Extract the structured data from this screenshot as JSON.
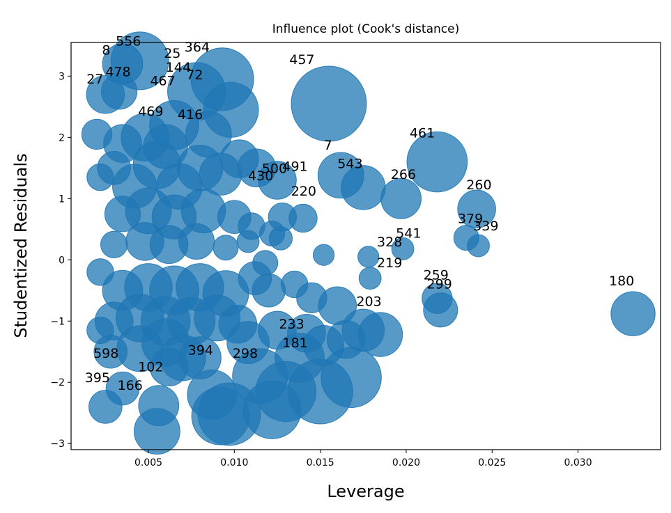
{
  "chart_data": {
    "type": "scatter",
    "title": "Influence plot (Cook's distance)",
    "xlabel": "Leverage",
    "ylabel": "Studentized Residuals",
    "xlim": [
      0.0005,
      0.0348
    ],
    "ylim": [
      -3.1,
      3.55
    ],
    "xticks": [
      0.005,
      0.01,
      0.015,
      0.02,
      0.025,
      0.03
    ],
    "xtick_labels": [
      "0.005",
      "0.010",
      "0.015",
      "0.020",
      "0.025",
      "0.030"
    ],
    "yticks": [
      -3,
      -2,
      -1,
      0,
      1,
      2,
      3
    ],
    "ytick_labels": [
      "−3",
      "−2",
      "−1",
      "0",
      "1",
      "2",
      "3"
    ],
    "grid": false,
    "color": "#1f77b4",
    "size_encodes": "Cook's distance",
    "points": [
      {
        "x": 0.0045,
        "y": 3.25,
        "cooks": 0.9
      },
      {
        "x": 0.0035,
        "y": 3.2,
        "cooks": 0.35
      },
      {
        "x": 0.0025,
        "y": 2.7,
        "cooks": 0.3
      },
      {
        "x": 0.0033,
        "y": 2.75,
        "cooks": 0.25
      },
      {
        "x": 0.0078,
        "y": 2.75,
        "cooks": 0.9
      },
      {
        "x": 0.0093,
        "y": 2.95,
        "cooks": 1.1
      },
      {
        "x": 0.0155,
        "y": 2.55,
        "cooks": 1.7
      },
      {
        "x": 0.0098,
        "y": 2.45,
        "cooks": 0.8
      },
      {
        "x": 0.0065,
        "y": 2.2,
        "cooks": 0.6
      },
      {
        "x": 0.002,
        "y": 2.05,
        "cooks": 0.15
      },
      {
        "x": 0.0218,
        "y": 1.6,
        "cooks": 1.0
      },
      {
        "x": 0.0162,
        "y": 1.38,
        "cooks": 0.5
      },
      {
        "x": 0.0175,
        "y": 1.18,
        "cooks": 0.45
      },
      {
        "x": 0.0197,
        "y": 1.0,
        "cooks": 0.35
      },
      {
        "x": 0.0241,
        "y": 0.83,
        "cooks": 0.3
      },
      {
        "x": 0.0235,
        "y": 0.36,
        "cooks": 0.08
      },
      {
        "x": 0.0242,
        "y": 0.23,
        "cooks": 0.05
      },
      {
        "x": 0.0332,
        "y": -0.88,
        "cooks": 0.45
      },
      {
        "x": 0.0218,
        "y": -0.63,
        "cooks": 0.15
      },
      {
        "x": 0.022,
        "y": -0.82,
        "cooks": 0.22
      },
      {
        "x": 0.0175,
        "y": -1.15,
        "cooks": 0.4
      },
      {
        "x": 0.0185,
        "y": -1.22,
        "cooks": 0.45
      },
      {
        "x": 0.0168,
        "y": -1.92,
        "cooks": 1.0
      },
      {
        "x": 0.015,
        "y": -2.15,
        "cooks": 1.2
      },
      {
        "x": 0.013,
        "y": -2.15,
        "cooks": 1.0
      },
      {
        "x": 0.0122,
        "y": -2.45,
        "cooks": 0.9
      },
      {
        "x": 0.0115,
        "y": -1.9,
        "cooks": 0.8
      },
      {
        "x": 0.0097,
        "y": -2.52,
        "cooks": 1.1
      },
      {
        "x": 0.0092,
        "y": -2.55,
        "cooks": 0.9
      },
      {
        "x": 0.0087,
        "y": -2.2,
        "cooks": 0.6
      },
      {
        "x": 0.0055,
        "y": -2.8,
        "cooks": 0.5
      },
      {
        "x": 0.0056,
        "y": -2.38,
        "cooks": 0.35
      },
      {
        "x": 0.0025,
        "y": -2.4,
        "cooks": 0.2
      },
      {
        "x": 0.0035,
        "y": -2.1,
        "cooks": 0.2
      },
      {
        "x": 0.0062,
        "y": -1.75,
        "cooks": 0.3
      },
      {
        "x": 0.008,
        "y": -1.6,
        "cooks": 0.4
      },
      {
        "x": 0.016,
        "y": -0.75,
        "cooks": 0.3
      },
      {
        "x": 0.0145,
        "y": -0.62,
        "cooks": 0.15
      },
      {
        "x": 0.0138,
        "y": -1.6,
        "cooks": 0.6
      },
      {
        "x": 0.0125,
        "y": -1.15,
        "cooks": 0.3
      },
      {
        "x": 0.0108,
        "y": -1.35,
        "cooks": 0.4
      },
      {
        "x": 0.0102,
        "y": -1.05,
        "cooks": 0.3
      },
      {
        "x": 0.0128,
        "y": 0.7,
        "cooks": 0.12
      },
      {
        "x": 0.014,
        "y": 0.68,
        "cooks": 0.12
      },
      {
        "x": 0.0122,
        "y": 0.43,
        "cooks": 0.08
      },
      {
        "x": 0.0127,
        "y": 0.35,
        "cooks": 0.06
      },
      {
        "x": 0.011,
        "y": 0.55,
        "cooks": 0.1
      },
      {
        "x": 0.01,
        "y": 0.7,
        "cooks": 0.2
      },
      {
        "x": 0.0113,
        "y": 1.5,
        "cooks": 0.3
      },
      {
        "x": 0.0125,
        "y": 1.3,
        "cooks": 0.3
      },
      {
        "x": 0.0103,
        "y": 1.65,
        "cooks": 0.3
      },
      {
        "x": 0.0092,
        "y": 1.4,
        "cooks": 0.4
      },
      {
        "x": 0.008,
        "y": 1.5,
        "cooks": 0.5
      },
      {
        "x": 0.0068,
        "y": 1.2,
        "cooks": 0.5
      },
      {
        "x": 0.0055,
        "y": 1.55,
        "cooks": 0.55
      },
      {
        "x": 0.0042,
        "y": 1.2,
        "cooks": 0.45
      },
      {
        "x": 0.003,
        "y": 1.5,
        "cooks": 0.2
      },
      {
        "x": 0.0022,
        "y": 1.35,
        "cooks": 0.1
      },
      {
        "x": 0.005,
        "y": 0.8,
        "cooks": 0.5
      },
      {
        "x": 0.0065,
        "y": 0.7,
        "cooks": 0.45
      },
      {
        "x": 0.0082,
        "y": 0.8,
        "cooks": 0.45
      },
      {
        "x": 0.0035,
        "y": 0.75,
        "cooks": 0.25
      },
      {
        "x": 0.0048,
        "y": 0.3,
        "cooks": 0.3
      },
      {
        "x": 0.0062,
        "y": 0.25,
        "cooks": 0.3
      },
      {
        "x": 0.0078,
        "y": 0.3,
        "cooks": 0.25
      },
      {
        "x": 0.003,
        "y": 0.25,
        "cooks": 0.1
      },
      {
        "x": 0.0095,
        "y": 0.2,
        "cooks": 0.08
      },
      {
        "x": 0.0108,
        "y": 0.3,
        "cooks": 0.05
      },
      {
        "x": 0.005,
        "y": -0.45,
        "cooks": 0.55
      },
      {
        "x": 0.0065,
        "y": -0.5,
        "cooks": 0.6
      },
      {
        "x": 0.008,
        "y": -0.45,
        "cooks": 0.55
      },
      {
        "x": 0.0095,
        "y": -0.55,
        "cooks": 0.5
      },
      {
        "x": 0.0035,
        "y": -0.5,
        "cooks": 0.35
      },
      {
        "x": 0.0045,
        "y": -0.95,
        "cooks": 0.55
      },
      {
        "x": 0.006,
        "y": -1.0,
        "cooks": 0.6
      },
      {
        "x": 0.0075,
        "y": -1.0,
        "cooks": 0.55
      },
      {
        "x": 0.009,
        "y": -0.95,
        "cooks": 0.5
      },
      {
        "x": 0.003,
        "y": -1.0,
        "cooks": 0.3
      },
      {
        "x": 0.0045,
        "y": -1.45,
        "cooks": 0.5
      },
      {
        "x": 0.006,
        "y": -1.35,
        "cooks": 0.55
      },
      {
        "x": 0.007,
        "y": -1.6,
        "cooks": 0.5
      },
      {
        "x": 0.0028,
        "y": -1.5,
        "cooks": 0.2
      },
      {
        "x": 0.0022,
        "y": -1.15,
        "cooks": 0.1
      },
      {
        "x": 0.0022,
        "y": -0.2,
        "cooks": 0.1
      },
      {
        "x": 0.0112,
        "y": -0.3,
        "cooks": 0.2
      },
      {
        "x": 0.012,
        "y": -0.5,
        "cooks": 0.2
      },
      {
        "x": 0.0135,
        "y": -0.4,
        "cooks": 0.1
      },
      {
        "x": 0.0118,
        "y": -0.05,
        "cooks": 0.08
      },
      {
        "x": 0.0048,
        "y": 2.0,
        "cooks": 0.55
      },
      {
        "x": 0.006,
        "y": 1.85,
        "cooks": 0.45
      },
      {
        "x": 0.0035,
        "y": 1.9,
        "cooks": 0.3
      },
      {
        "x": 0.0085,
        "y": 2.05,
        "cooks": 0.5
      },
      {
        "x": 0.0142,
        "y": -1.2,
        "cooks": 0.3
      },
      {
        "x": 0.0152,
        "y": -1.4,
        "cooks": 0.35
      },
      {
        "x": 0.0165,
        "y": -1.3,
        "cooks": 0.3
      },
      {
        "x": 0.0179,
        "y": -0.3,
        "cooks": 0.05
      },
      {
        "x": 0.0178,
        "y": 0.05,
        "cooks": 0.04
      },
      {
        "x": 0.0152,
        "y": 0.08,
        "cooks": 0.04
      },
      {
        "x": 0.0198,
        "y": 0.18,
        "cooks": 0.05
      }
    ],
    "annotations": [
      {
        "text": "8",
        "x": 0.0023,
        "y": 3.35
      },
      {
        "text": "556",
        "x": 0.0031,
        "y": 3.5
      },
      {
        "text": "25",
        "x": 0.0059,
        "y": 3.3
      },
      {
        "text": "364",
        "x": 0.0071,
        "y": 3.4
      },
      {
        "text": "144",
        "x": 0.006,
        "y": 3.07
      },
      {
        "text": "478",
        "x": 0.0025,
        "y": 3.0
      },
      {
        "text": "467",
        "x": 0.0051,
        "y": 2.85
      },
      {
        "text": "72",
        "x": 0.0072,
        "y": 2.95
      },
      {
        "text": "27",
        "x": 0.0014,
        "y": 2.88
      },
      {
        "text": "457",
        "x": 0.0132,
        "y": 3.2
      },
      {
        "text": "469",
        "x": 0.0044,
        "y": 2.35
      },
      {
        "text": "416",
        "x": 0.0067,
        "y": 2.3
      },
      {
        "text": "461",
        "x": 0.0202,
        "y": 2.0
      },
      {
        "text": "7",
        "x": 0.0152,
        "y": 1.8
      },
      {
        "text": "543",
        "x": 0.016,
        "y": 1.5
      },
      {
        "text": "491",
        "x": 0.0128,
        "y": 1.45
      },
      {
        "text": "266",
        "x": 0.0191,
        "y": 1.32
      },
      {
        "text": "260",
        "x": 0.0235,
        "y": 1.15
      },
      {
        "text": "379",
        "x": 0.023,
        "y": 0.6
      },
      {
        "text": "541",
        "x": 0.0194,
        "y": 0.36
      },
      {
        "text": "339",
        "x": 0.0239,
        "y": 0.48
      },
      {
        "text": "328",
        "x": 0.0183,
        "y": 0.22
      },
      {
        "text": "219",
        "x": 0.0183,
        "y": -0.12
      },
      {
        "text": "259",
        "x": 0.021,
        "y": -0.32
      },
      {
        "text": "299",
        "x": 0.0212,
        "y": -0.47
      },
      {
        "text": "180",
        "x": 0.0318,
        "y": -0.42
      },
      {
        "text": "203",
        "x": 0.0171,
        "y": -0.75
      },
      {
        "text": "233",
        "x": 0.0126,
        "y": -1.12
      },
      {
        "text": "181",
        "x": 0.0128,
        "y": -1.43
      },
      {
        "text": "298",
        "x": 0.0099,
        "y": -1.6
      },
      {
        "text": "394",
        "x": 0.0073,
        "y": -1.55
      },
      {
        "text": "102",
        "x": 0.0044,
        "y": -1.82
      },
      {
        "text": "598",
        "x": 0.0018,
        "y": -1.6
      },
      {
        "text": "166",
        "x": 0.0032,
        "y": -2.12
      },
      {
        "text": "395",
        "x": 0.0013,
        "y": -2.0
      },
      {
        "text": "220",
        "x": 0.0133,
        "y": 1.05
      },
      {
        "text": "430",
        "x": 0.0108,
        "y": 1.3
      },
      {
        "text": "500",
        "x": 0.0116,
        "y": 1.42
      }
    ]
  }
}
